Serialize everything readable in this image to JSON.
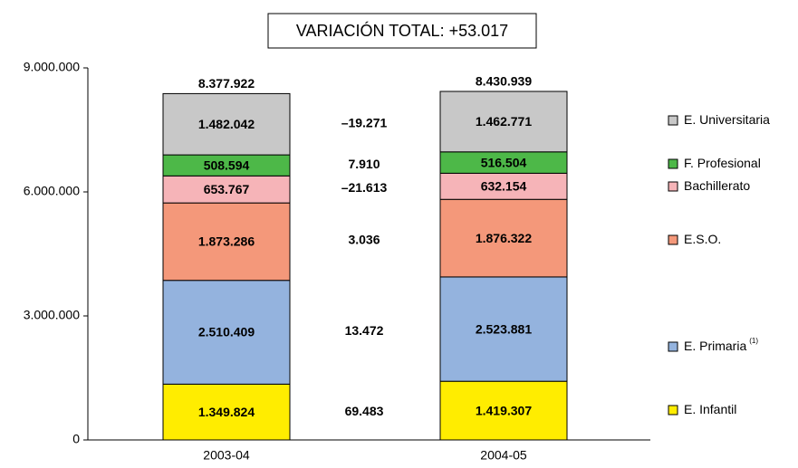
{
  "chart_data": {
    "type": "stacked_bar",
    "title": "VARIACIÓN TOTAL: +53.017",
    "categories": [
      "2003-04",
      "2004-05"
    ],
    "series": [
      {
        "name": "E. Infantil",
        "color": "#ffed00",
        "values": [
          1349824,
          1419307
        ],
        "value_labels": [
          "1.349.824",
          "1.419.307"
        ]
      },
      {
        "name": "E. Primaria",
        "note": "(1)",
        "color": "#94b3de",
        "values": [
          2510409,
          2523881
        ],
        "value_labels": [
          "2.510.409",
          "2.523.881"
        ]
      },
      {
        "name": "E.S.O.",
        "color": "#f4987a",
        "values": [
          1873286,
          1876322
        ],
        "value_labels": [
          "1.873.286",
          "1.876.322"
        ]
      },
      {
        "name": "Bachillerato",
        "color": "#f6b4b8",
        "values": [
          653767,
          632154
        ],
        "value_labels": [
          "653.767",
          "632.154"
        ]
      },
      {
        "name": "F. Profesional",
        "color": "#4db848",
        "values": [
          508594,
          516504
        ],
        "value_labels": [
          "508.594",
          "516.504"
        ]
      },
      {
        "name": "E. Universitaria",
        "color": "#c8c8c8",
        "values": [
          1482042,
          1462771
        ],
        "value_labels": [
          "1.482.042",
          "1.462.771"
        ]
      }
    ],
    "totals": [
      {
        "value": 8377922,
        "label": "8.377.922"
      },
      {
        "value": 8430939,
        "label": "8.430.939"
      }
    ],
    "differences": [
      {
        "value": 69483,
        "label": "69.483"
      },
      {
        "value": 13472,
        "label": "13.472"
      },
      {
        "value": 3036,
        "label": "3.036"
      },
      {
        "value": -21613,
        "label": "–21.613"
      },
      {
        "value": 7910,
        "label": "7.910"
      },
      {
        "value": -19271,
        "label": "–19.271"
      }
    ],
    "ylim": [
      0,
      9000000
    ],
    "yticks": [
      0,
      {
        "value": 3000000,
        "label": "3.000.000"
      },
      {
        "value": 6000000,
        "label": "6.000.000"
      },
      {
        "value": 9000000,
        "label": "9.000.000"
      }
    ],
    "legend": "right"
  }
}
